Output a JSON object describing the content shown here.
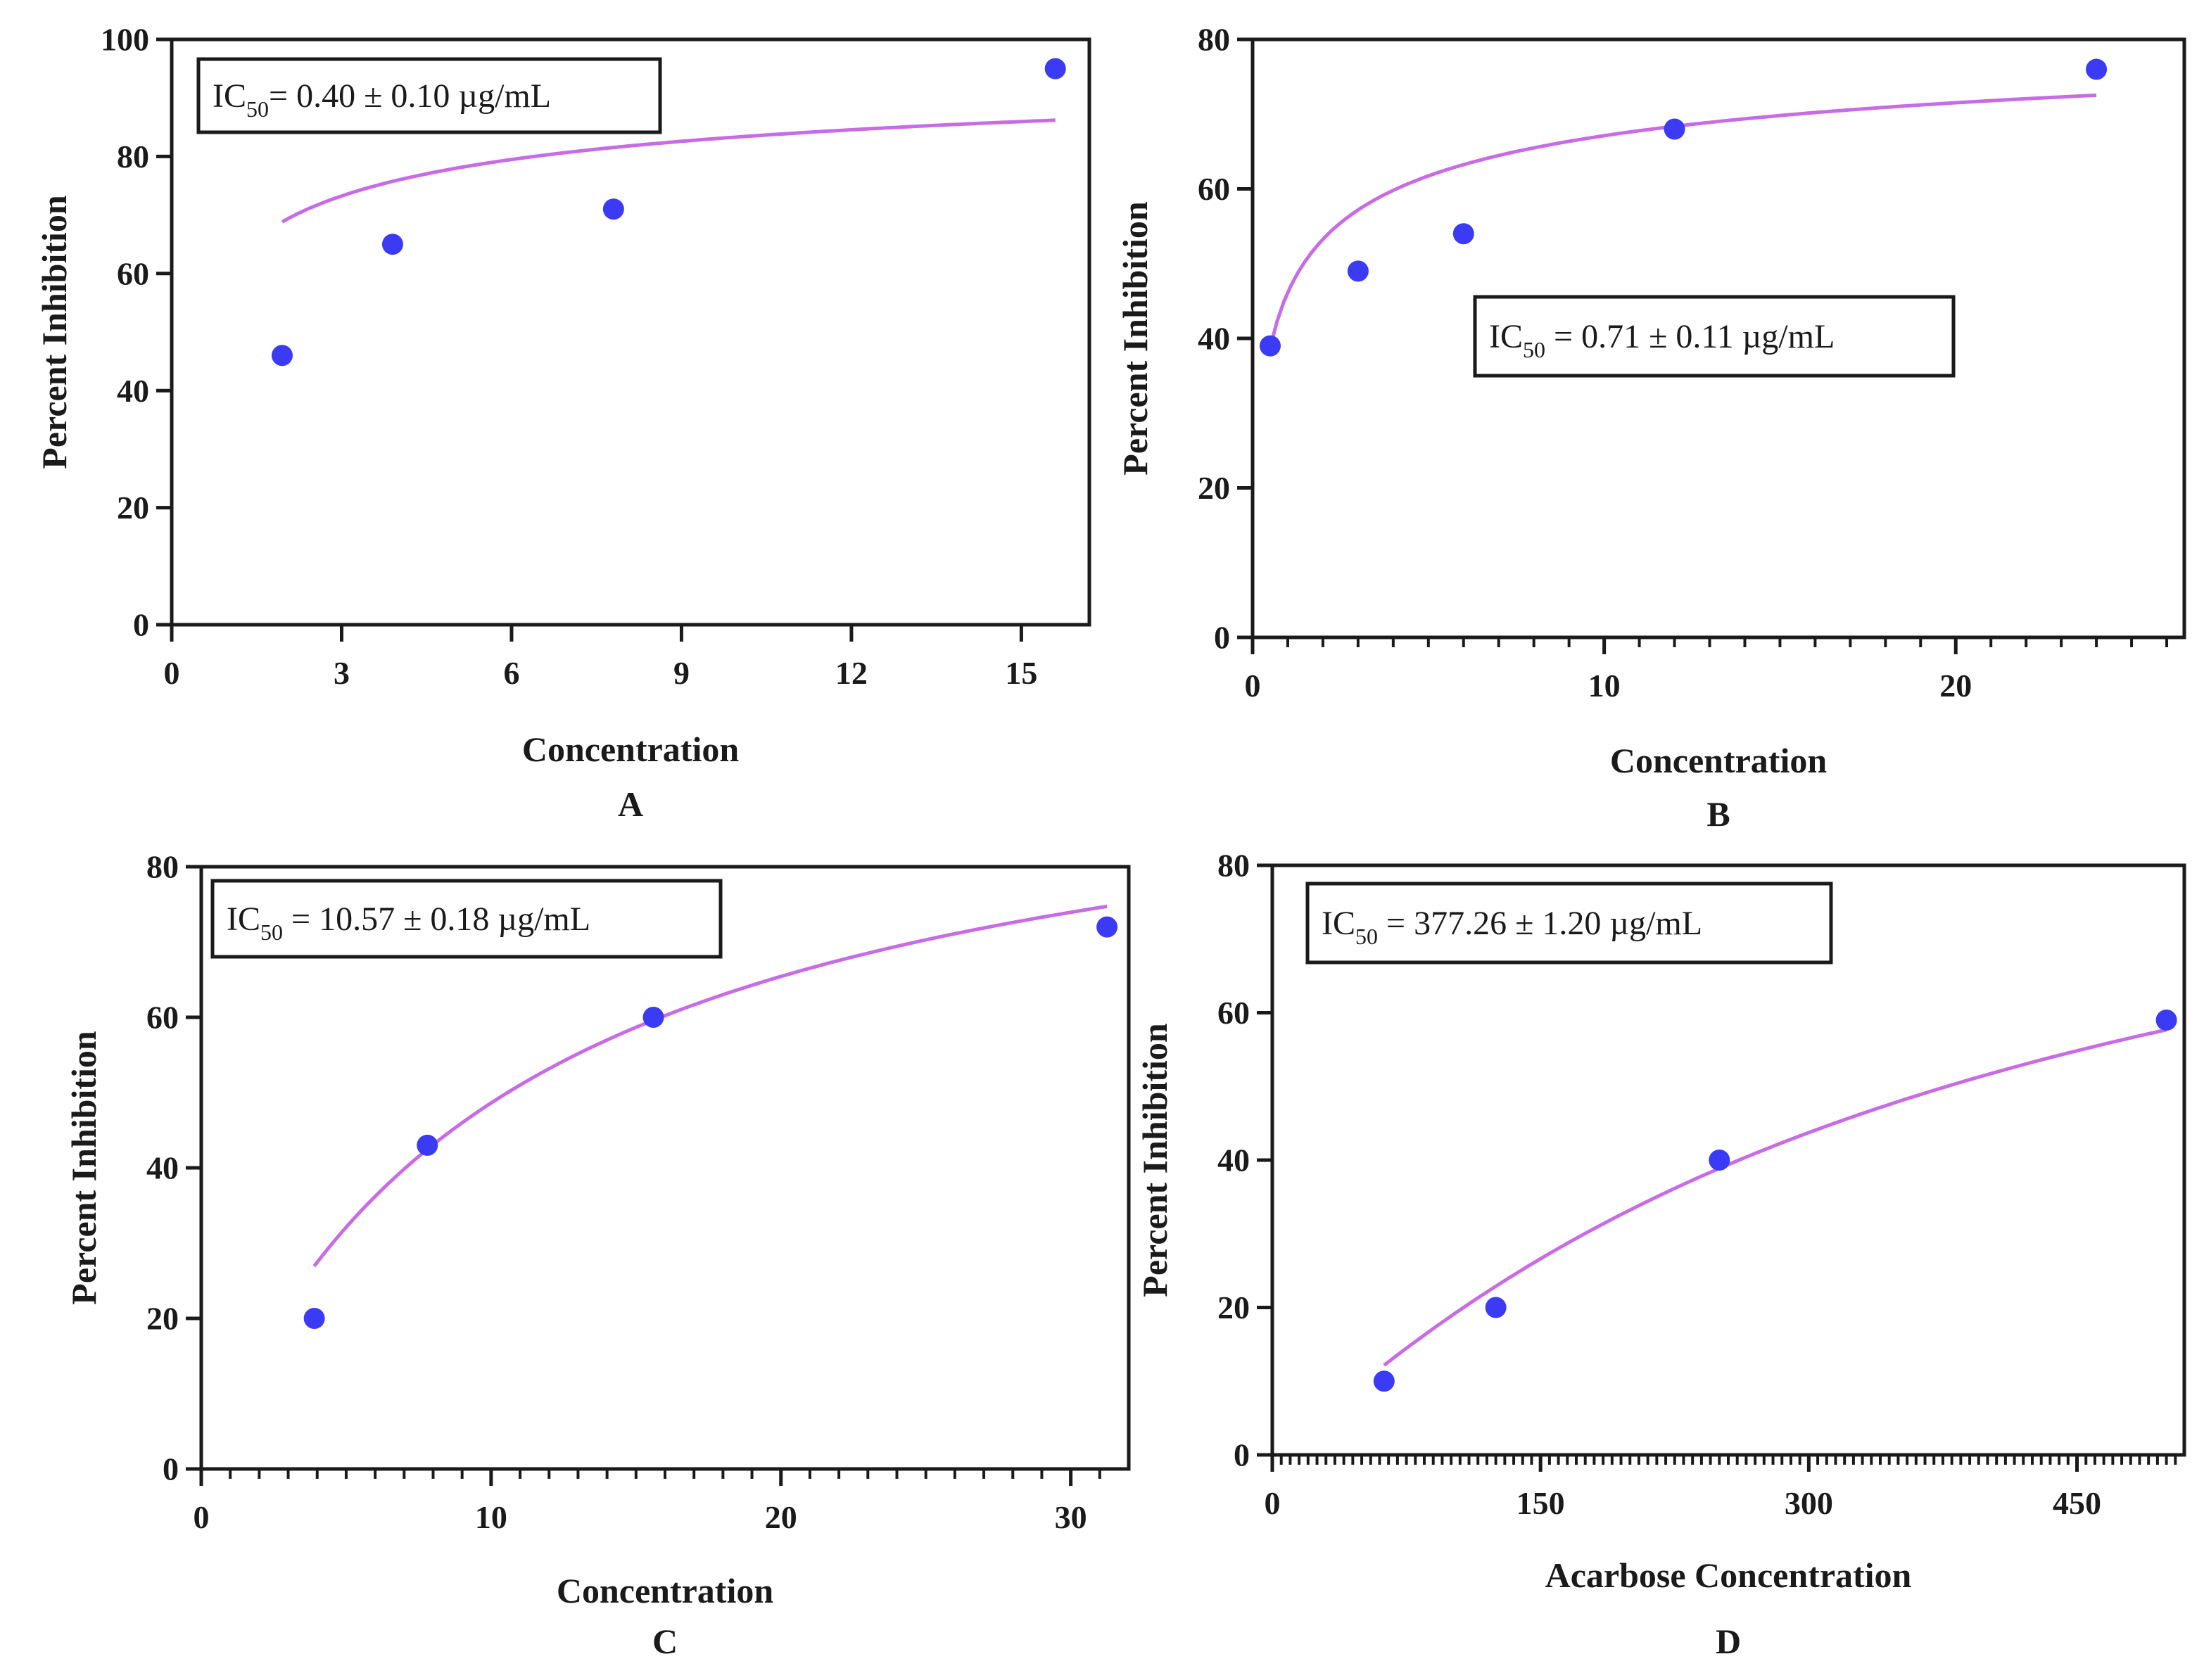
{
  "figure": {
    "panels": [
      "A",
      "B",
      "C",
      "D"
    ]
  },
  "colors": {
    "point": "#3b3bf5",
    "curve": "#c86ce6",
    "axis": "#1a1a1a",
    "text": "#1a1a1a"
  },
  "chart_data": [
    {
      "panel": "A",
      "type": "scatter",
      "title": "",
      "xlabel": "Concentration",
      "ylabel": "Percent Inhibition",
      "xlim": [
        0,
        16.2
      ],
      "ylim": [
        0,
        100
      ],
      "xticks": [
        0,
        3,
        6,
        9,
        12,
        15
      ],
      "yticks": [
        0,
        20,
        40,
        60,
        80,
        100
      ],
      "minor_x": 0,
      "ytick_size": "large",
      "ic50_label": "IC",
      "ic50_sub": "50",
      "ic50_value": "= 0.40 ± 0.10 µg/mL",
      "ic50_box": "top-left",
      "points": [
        {
          "x": 1.95,
          "y": 46
        },
        {
          "x": 3.9,
          "y": 65
        },
        {
          "x": 7.8,
          "y": 71
        },
        {
          "x": 15.6,
          "y": 95
        }
      ],
      "fit": {
        "model": "hill",
        "top": 100,
        "ic50": 0.4,
        "hill": 0.5,
        "x_range": [
          1.95,
          15.6
        ]
      }
    },
    {
      "panel": "B",
      "type": "scatter",
      "title": "",
      "xlabel": "Concentration",
      "ylabel": "Percent Inhibition",
      "xlim": [
        0,
        26.5
      ],
      "ylim": [
        0,
        80
      ],
      "xticks": [
        0,
        10,
        20
      ],
      "yticks": [
        0,
        20,
        40,
        60,
        80
      ],
      "minor_x": 1,
      "ic50_label": "IC",
      "ic50_sub": "50",
      "ic50_value": " = 0.71 ± 0.11 µg/mL",
      "ic50_box": "center-right",
      "points": [
        {
          "x": 0.5,
          "y": 39
        },
        {
          "x": 3,
          "y": 49
        },
        {
          "x": 6,
          "y": 54
        },
        {
          "x": 12,
          "y": 68
        },
        {
          "x": 24,
          "y": 76
        }
      ],
      "fit": {
        "model": "hill",
        "top": 85,
        "ic50": 0.71,
        "hill": 0.5,
        "x_range": [
          0.5,
          24
        ]
      }
    },
    {
      "panel": "C",
      "type": "scatter",
      "title": "",
      "xlabel": "Concentration",
      "ylabel": "Percent Inhibition",
      "xlim": [
        0,
        32
      ],
      "ylim": [
        0,
        80
      ],
      "xticks": [
        0,
        10,
        20,
        30
      ],
      "yticks": [
        0,
        20,
        40,
        60,
        80
      ],
      "minor_x": 1,
      "ic50_label": "IC",
      "ic50_sub": "50",
      "ic50_value": " = 10.57 ± 0.18 µg/mL",
      "ic50_box": "top-left",
      "points": [
        {
          "x": 3.9,
          "y": 20
        },
        {
          "x": 7.8,
          "y": 43
        },
        {
          "x": 15.6,
          "y": 60
        },
        {
          "x": 31.25,
          "y": 72
        }
      ],
      "fit": {
        "model": "hill",
        "top": 100,
        "ic50": 10.57,
        "hill": 1.0,
        "x_range": [
          3.9,
          31.25
        ]
      }
    },
    {
      "panel": "D",
      "type": "scatter",
      "title": "",
      "xlabel": "Acarbose Concentration",
      "ylabel": "Percent Inhibition",
      "xlim": [
        0,
        510
      ],
      "ylim": [
        0,
        80
      ],
      "xticks": [
        0,
        150,
        300,
        450
      ],
      "yticks": [
        0,
        20,
        40,
        60,
        80
      ],
      "minor_x": 5,
      "ic50_label": "IC",
      "ic50_sub": "50",
      "ic50_value": " = 377.26 ± 1.20 µg/mL",
      "ic50_box": "top-left",
      "points": [
        {
          "x": 62.5,
          "y": 10
        },
        {
          "x": 125,
          "y": 20
        },
        {
          "x": 250,
          "y": 40
        },
        {
          "x": 500,
          "y": 59
        }
      ],
      "fit": {
        "model": "hill",
        "top": 100,
        "ic50": 377.26,
        "hill": 1.1,
        "x_range": [
          62.5,
          500
        ]
      }
    }
  ]
}
